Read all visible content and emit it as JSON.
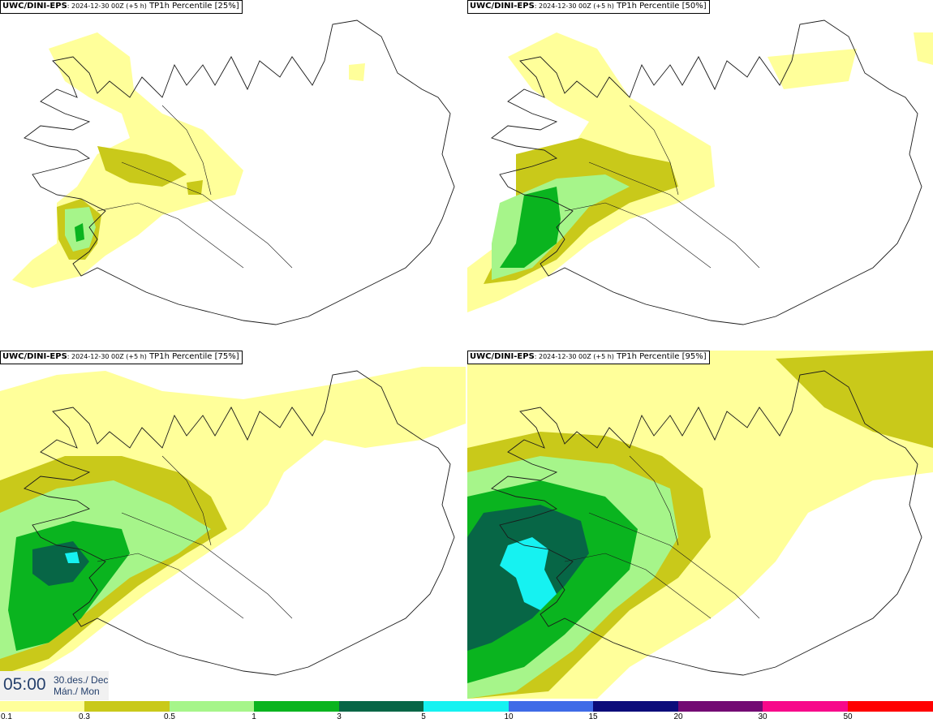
{
  "panels": [
    {
      "model": "UWC/DINI-EPS",
      "meta": ": 2024-12-30 00Z (+5 h)",
      "tail": " TP1h Percentile [25%]"
    },
    {
      "model": "UWC/DINI-EPS",
      "meta": ": 2024-12-30 00Z (+5 h)",
      "tail": " TP1h Percentile [50%]"
    },
    {
      "model": "UWC/DINI-EPS",
      "meta": ": 2024-12-30 00Z (+5 h)",
      "tail": " TP1h Percentile [75%]"
    },
    {
      "model": "UWC/DINI-EPS",
      "meta": ": 2024-12-30 00Z (+5 h)",
      "tail": " TP1h Percentile [95%]"
    }
  ],
  "time": {
    "clock": "05:00",
    "date_line1": "30.des./ Dec",
    "date_line2": "Mán./ Mon"
  },
  "legend": {
    "ticks": [
      "0.1",
      "0.3",
      "0.5",
      "1",
      "3",
      "5",
      "10",
      "15",
      "20",
      "30",
      "50"
    ],
    "colors": [
      "#ffff9a",
      "#c9c91a",
      "#a6f58a",
      "#0ab41f",
      "#076646",
      "#16f2f1",
      "#3f6be7",
      "#0c0c7a",
      "#730a73",
      "#f7088a",
      "#ff0000"
    ]
  },
  "colors": {
    "p01": "#ffff9a",
    "p03": "#c9c91a",
    "p05": "#a6f58a",
    "p1": "#0ab41f",
    "p3": "#076646",
    "p5": "#16f2f1",
    "p10": "#3f6be7",
    "coast": "#1a1a1a"
  }
}
